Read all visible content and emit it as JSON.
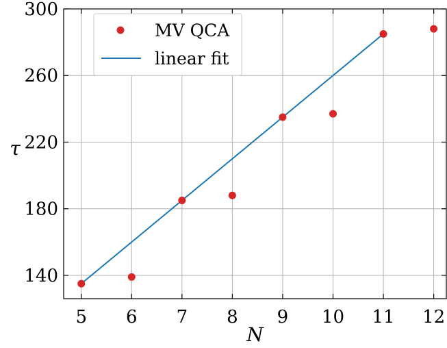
{
  "chart_data": {
    "type": "scatter",
    "title": "",
    "xlabel": "N",
    "ylabel": "τ",
    "xlim": [
      4.65,
      12.25
    ],
    "ylim": [
      126,
      300
    ],
    "xticks": [
      5,
      6,
      7,
      8,
      9,
      10,
      11,
      12
    ],
    "yticks": [
      140,
      180,
      220,
      260,
      300
    ],
    "grid": true,
    "legend_position": "top-left",
    "series": [
      {
        "name": "MV QCA",
        "kind": "scatter",
        "color": "#d62728",
        "x": [
          5,
          6,
          7,
          8,
          9,
          10,
          11,
          12
        ],
        "y": [
          135,
          139,
          185,
          188,
          235,
          237,
          285,
          288
        ]
      },
      {
        "name": "linear fit",
        "kind": "line",
        "color": "#1f77b4",
        "x": [
          5,
          11
        ],
        "y": [
          135,
          285
        ]
      }
    ]
  }
}
